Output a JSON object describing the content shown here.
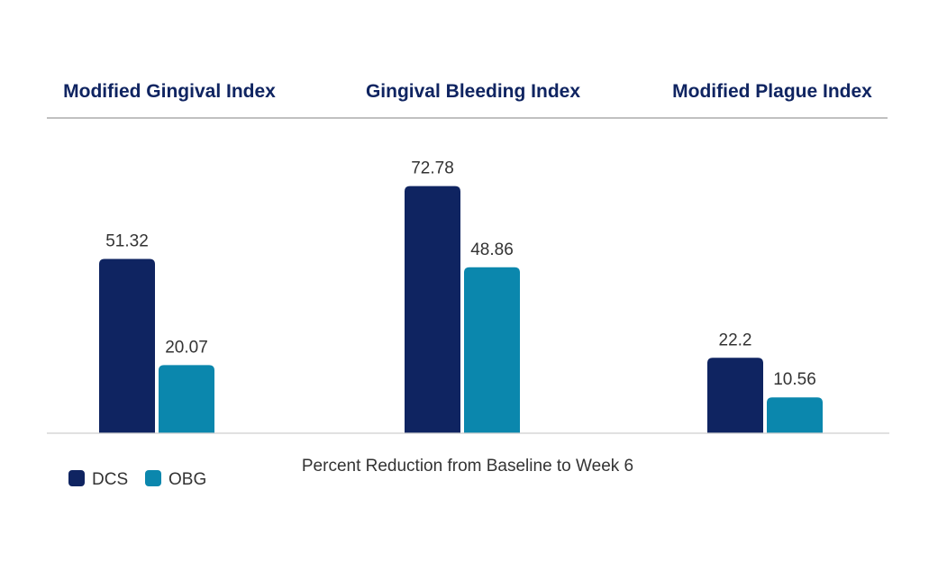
{
  "chart_data": {
    "type": "bar",
    "title": "",
    "categories": [
      "Modified Gingival Index",
      "Gingival Bleeding Index",
      "Modified Plague Index"
    ],
    "series": [
      {
        "name": "DCS",
        "values": [
          51.32,
          72.78,
          22.2
        ],
        "labels": [
          "51.32",
          "72.78",
          "22.2"
        ]
      },
      {
        "name": "OBG",
        "values": [
          20.07,
          48.86,
          10.56
        ],
        "labels": [
          "20.07",
          "48.86",
          "10.56"
        ]
      }
    ],
    "xlabel": "Percent Reduction from Baseline to Week 6",
    "ylabel": "",
    "legend_position": "bottom-left",
    "grid": false
  },
  "colors": {
    "DCS": "#0f2461",
    "OBG": "#0b87ad",
    "title_text": "#0f2461",
    "value_text": "#333333",
    "axis_line": "#cfcfcf",
    "header_rule": "#9a9a9a"
  }
}
